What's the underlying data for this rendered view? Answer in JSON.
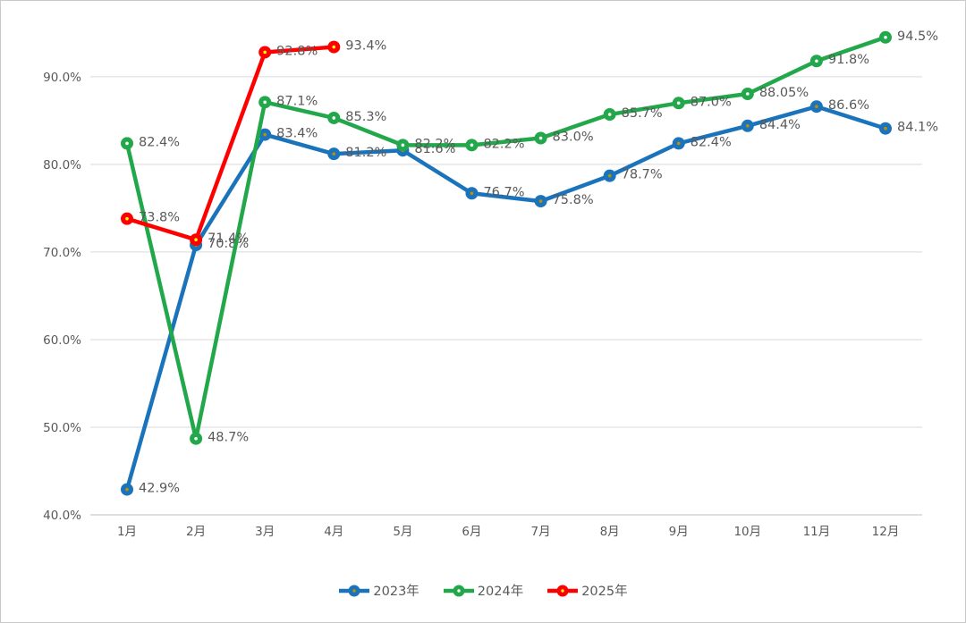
{
  "chart": {
    "background": "#ffffff",
    "grid_color": "#d9d9d9",
    "axis_line_color": "#bfbfbf",
    "axis_label_color": "#595959",
    "data_label_color": "#595959",
    "series_colors": {
      "2023": "#1b74bb",
      "2024": "#22a84a",
      "2025": "#ff0000"
    }
  },
  "chart_data": {
    "type": "line",
    "title": "",
    "xlabel": "",
    "ylabel": "",
    "grid": true,
    "legend_position": "bottom",
    "categories": [
      "1月",
      "2月",
      "3月",
      "4月",
      "5月",
      "6月",
      "7月",
      "8月",
      "9月",
      "10月",
      "11月",
      "12月"
    ],
    "y_ticks": [
      "40.0%",
      "50.0%",
      "60.0%",
      "70.0%",
      "80.0%",
      "90.0%"
    ],
    "y_tick_values": [
      40,
      50,
      60,
      70,
      80,
      90
    ],
    "ylim": [
      40,
      95.6
    ],
    "series": [
      {
        "name": "2023年",
        "color": "#1b74bb",
        "marker_center": "#bf8f00",
        "values": [
          42.9,
          70.8,
          83.4,
          81.2,
          81.6,
          76.7,
          75.8,
          78.7,
          82.4,
          84.4,
          86.6,
          84.1
        ],
        "labels": [
          "42.9%",
          "70.8%",
          "83.4%",
          "81.2%",
          "81.6%",
          "76.7%",
          "75.8%",
          "78.7%",
          "82.4%",
          "84.4%",
          "86.6%",
          "84.1%"
        ]
      },
      {
        "name": "2024年",
        "color": "#22a84a",
        "marker_center": "#ffffff",
        "values": [
          82.4,
          48.7,
          87.1,
          85.3,
          82.2,
          82.2,
          83.0,
          85.7,
          87.0,
          88.05,
          91.8,
          94.5
        ],
        "labels": [
          "82.4%",
          "48.7%",
          "87.1%",
          "85.3%",
          "82.2%",
          "82.2%",
          "83.0%",
          "85.7%",
          "87.0%",
          "88.05%",
          "91.8%",
          "94.5%"
        ]
      },
      {
        "name": "2025年",
        "color": "#ff0000",
        "marker_center": "#ffff00",
        "values": [
          73.8,
          71.4,
          92.8,
          93.4
        ],
        "labels": [
          "73.8%",
          "71.4%",
          "92.8%",
          "93.4%"
        ]
      }
    ]
  }
}
